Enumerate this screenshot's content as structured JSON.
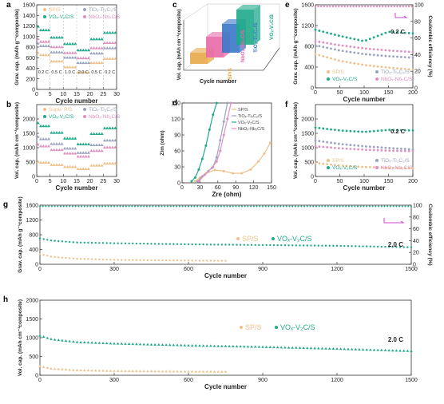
{
  "figure": {
    "colors": {
      "sp": "#f0c08a",
      "tic": "#9aa3c0",
      "vox": "#1faa8a",
      "nbo": "#e090c0",
      "ce": "#1faa8a",
      "pink_marker": "#cc44cc"
    }
  },
  "chart_data": [
    {
      "panel": "a",
      "type": "scatter",
      "xlabel": "Cycle number",
      "ylabel": "Grav. cap. (mAh g⁻¹composite)",
      "xlim": [
        0,
        30
      ],
      "ylim": [
        0,
        1600
      ],
      "xticks": [
        0,
        5,
        10,
        15,
        20,
        25,
        30
      ],
      "yticks": [
        0,
        200,
        400,
        600,
        800,
        1000,
        1200,
        1400,
        1600
      ],
      "rate_labels": [
        "0.2 C",
        "0.5 C",
        "1.0 C",
        "2.0 C",
        "0.5 C",
        "0.2 C"
      ],
      "legend": [
        "SP/S",
        "TiOₓ-Ti₃C₂/S",
        "VOₓ-V₂C/S",
        "NbOₓ-Nb₂C/S"
      ],
      "series": [
        {
          "name": "SP/S",
          "levels": [
            650,
            530,
            420,
            320,
            500,
            580
          ]
        },
        {
          "name": "TiOₓ-Ti₃C₂/S",
          "levels": [
            820,
            700,
            600,
            500,
            680,
            780
          ]
        },
        {
          "name": "VOₓ-V₂C/S",
          "levels": [
            1120,
            980,
            860,
            740,
            950,
            1070
          ]
        },
        {
          "name": "NbOₓ-Nb₂C/S",
          "levels": [
            900,
            800,
            690,
            590,
            780,
            880
          ]
        }
      ]
    },
    {
      "panel": "b",
      "type": "scatter",
      "xlabel": "Cycle number",
      "ylabel": "Vol. cap. (mAh cm⁻³composite)",
      "xlim": [
        0,
        30
      ],
      "ylim": [
        0,
        2500
      ],
      "xticks": [
        0,
        5,
        10,
        15,
        20,
        25,
        30
      ],
      "yticks": [
        0,
        500,
        1000,
        1500,
        2000
      ],
      "legend": [
        "Super P/S",
        "TiOₓ-Ti₃C₂/S",
        "VOₓ-V₂C/S",
        "NbOₓ-Nb₂C/S"
      ],
      "series": [
        {
          "name": "Super P/S",
          "levels": [
            480,
            400,
            330,
            260,
            380,
            450
          ]
        },
        {
          "name": "TiOₓ-Ti₃C₂/S",
          "levels": [
            1300,
            1130,
            970,
            820,
            1090,
            1250
          ]
        },
        {
          "name": "VOₓ-V₂C/S",
          "levels": [
            1750,
            1520,
            1320,
            1120,
            1480,
            1680
          ]
        },
        {
          "name": "NbOₓ-Nb₂C/S",
          "levels": [
            1050,
            920,
            800,
            690,
            890,
            1010
          ]
        }
      ]
    },
    {
      "panel": "c",
      "type": "bar-3d",
      "ylabel": "Vol. cap. (mAh cm⁻³composite)",
      "xlabel": "Cycle number",
      "categories": [
        "SP/S",
        "NbOₓ-Nb₂C/S",
        "TiOₓ-Ti₃C₂/S",
        "VOₓ-V₂C/S"
      ]
    },
    {
      "panel": "d",
      "type": "line",
      "xlabel": "Zre (ohm)",
      "ylabel": "Zim (ohm)",
      "xlim": [
        0,
        150
      ],
      "ylim": [
        0,
        150
      ],
      "xticks": [
        0,
        30,
        60,
        90,
        120,
        150
      ],
      "yticks": [
        0,
        30,
        60,
        90,
        120,
        150
      ],
      "legend": [
        "SP/S",
        "TiOₓ-Ti₃C₂/S",
        "VOₓ-V₂C/S",
        "NbOₓ-Nb₂C/S"
      ],
      "series": [
        {
          "name": "SP/S",
          "x": [
            22,
            30,
            40,
            55,
            70,
            85,
            100,
            115,
            128,
            138,
            148
          ],
          "y": [
            3,
            10,
            18,
            24,
            22,
            18,
            18,
            25,
            40,
            55,
            75
          ]
        },
        {
          "name": "TiOₓ-Ti₃C₂/S",
          "x": [
            26,
            34,
            44,
            52,
            58,
            64,
            70,
            76
          ],
          "y": [
            3,
            12,
            22,
            30,
            48,
            80,
            115,
            150
          ]
        },
        {
          "name": "VOₓ-V₂C/S",
          "x": [
            16,
            22,
            28,
            34,
            40,
            46,
            52,
            58
          ],
          "y": [
            3,
            10,
            25,
            45,
            70,
            100,
            128,
            150
          ]
        },
        {
          "name": "NbOₓ-Nb₂C/S",
          "x": [
            28,
            38,
            50,
            58,
            64,
            70,
            76,
            82
          ],
          "y": [
            3,
            15,
            28,
            40,
            60,
            90,
            120,
            150
          ]
        }
      ]
    },
    {
      "panel": "e",
      "type": "scatter",
      "xlabel": "Cycle number",
      "ylabel": "Grav. cap. (mAh g⁻¹composite)",
      "ylabel2": "Coulombic efficiency (%)",
      "xlim": [
        0,
        200
      ],
      "ylim": [
        0,
        1600
      ],
      "y2lim": [
        0,
        100
      ],
      "xticks": [
        0,
        50,
        100,
        150,
        200
      ],
      "yticks": [
        0,
        400,
        800,
        1200,
        1600
      ],
      "y2ticks": [
        0,
        20,
        40,
        60,
        80,
        100
      ],
      "rate_label": "0.2 C",
      "legend": [
        "SP/S",
        "TiOₓ-Ti₃C₂/S",
        "VOₓ-V₂C/S",
        "NbOₓ-Nb₂C/S"
      ],
      "series": [
        {
          "name": "SP/S",
          "x": [
            0,
            50,
            100,
            150,
            200
          ],
          "y": [
            650,
            520,
            440,
            390,
            350
          ]
        },
        {
          "name": "TiOₓ-Ti₃C₂/S",
          "x": [
            0,
            50,
            100,
            150,
            200
          ],
          "y": [
            820,
            720,
            650,
            610,
            580
          ]
        },
        {
          "name": "VOₓ-V₂C/S",
          "x": [
            0,
            50,
            100,
            150,
            200
          ],
          "y": [
            1120,
            1000,
            900,
            1080,
            1050
          ]
        },
        {
          "name": "NbOₓ-Nb₂C/S",
          "x": [
            0,
            50,
            100,
            150,
            200
          ],
          "y": [
            900,
            820,
            760,
            720,
            690
          ]
        }
      ]
    },
    {
      "panel": "f",
      "type": "scatter",
      "xlabel": "Cycle number",
      "ylabel": "Vol. cap. (mAh cm⁻³composite)",
      "xlim": [
        0,
        200
      ],
      "ylim": [
        0,
        2500
      ],
      "xticks": [
        0,
        50,
        100,
        150,
        200
      ],
      "yticks": [
        0,
        500,
        1000,
        1500,
        2000
      ],
      "rate_label": "0.2 C",
      "legend": [
        "SP/S",
        "TiOₓ-Ti₃C₂/S",
        "VOₓ-V₂C/S",
        "NbOₓ-Nb₂C/S"
      ],
      "series": [
        {
          "name": "SP/S",
          "x": [
            0,
            50,
            100,
            150,
            200
          ],
          "y": [
            470,
            380,
            330,
            300,
            280
          ]
        },
        {
          "name": "TiOₓ-Ti₃C₂/S",
          "x": [
            0,
            50,
            100,
            150,
            200
          ],
          "y": [
            1250,
            1130,
            1050,
            990,
            940
          ]
        },
        {
          "name": "VOₓ-V₂C/S",
          "x": [
            0,
            50,
            100,
            150,
            200
          ],
          "y": [
            1700,
            1600,
            1550,
            1620,
            1600
          ]
        },
        {
          "name": "NbOₓ-Nb₂C/S",
          "x": [
            0,
            50,
            100,
            150,
            200
          ],
          "y": [
            1050,
            980,
            930,
            900,
            880
          ]
        }
      ]
    },
    {
      "panel": "g",
      "type": "scatter",
      "xlabel": "Cycle number",
      "ylabel": "Grav. cap. (mAh g⁻¹composite)",
      "ylabel2": "Coulombic efficiency (%)",
      "xlim": [
        0,
        1500
      ],
      "ylim": [
        0,
        1600
      ],
      "y2lim": [
        0,
        100
      ],
      "xticks": [
        0,
        300,
        600,
        900,
        1200,
        1500
      ],
      "yticks": [
        0,
        400,
        800,
        1200,
        1600
      ],
      "y2ticks": [
        0,
        20,
        40,
        60,
        80,
        100
      ],
      "rate_label": "2.0 C",
      "legend": [
        "SP/S",
        "VOₓ-V₂C/S"
      ],
      "series": [
        {
          "name": "SP/S",
          "x": [
            0,
            50,
            150,
            300,
            450,
            600,
            750
          ],
          "y": [
            280,
            200,
            150,
            120,
            110,
            100,
            95
          ]
        },
        {
          "name": "VOₓ-V₂C/S",
          "x": [
            0,
            50,
            150,
            300,
            600,
            900,
            1200,
            1500
          ],
          "y": [
            700,
            640,
            590,
            570,
            540,
            520,
            500,
            460
          ]
        },
        {
          "name": "CE",
          "x": [
            0,
            1500
          ],
          "y": [
            98,
            98
          ]
        }
      ]
    },
    {
      "panel": "h",
      "type": "scatter",
      "xlabel": "Cycle number",
      "ylabel": "Vol. cap. (mAh cm⁻³composite)",
      "xlim": [
        0,
        1500
      ],
      "ylim": [
        0,
        2000
      ],
      "xticks": [
        0,
        300,
        600,
        900,
        1200,
        1500
      ],
      "yticks": [
        0,
        500,
        1000,
        1500,
        2000
      ],
      "rate_label": "2.0 C",
      "legend": [
        "SP/S",
        "VOₓ-V₂C/S"
      ],
      "series": [
        {
          "name": "SP/S",
          "x": [
            0,
            50,
            150,
            300,
            450,
            600,
            750
          ],
          "y": [
            230,
            170,
            130,
            110,
            100,
            95,
            90
          ]
        },
        {
          "name": "VOₓ-V₂C/S",
          "x": [
            0,
            50,
            150,
            300,
            600,
            900,
            1200,
            1500
          ],
          "y": [
            1050,
            950,
            880,
            840,
            790,
            750,
            700,
            640
          ]
        }
      ]
    }
  ]
}
